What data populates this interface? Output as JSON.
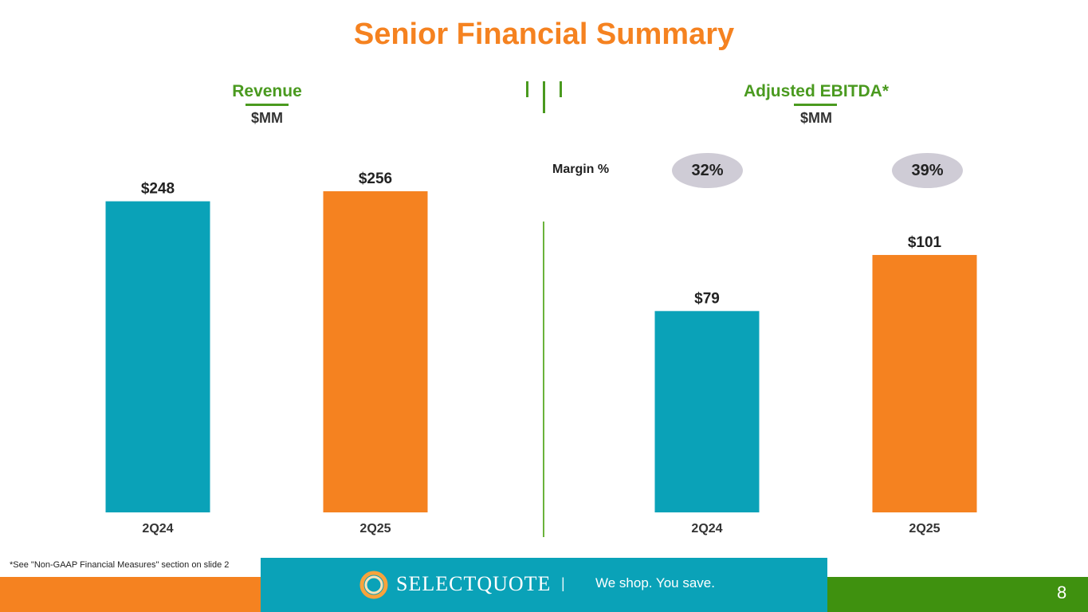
{
  "title": "Senior Financial Summary",
  "colors": {
    "title": "#f58220",
    "accent_green": "#4a9a1f",
    "teal": "#0aa2b8",
    "orange": "#f58220",
    "footer_green": "#3f910f",
    "pill": "#cfccd6"
  },
  "revenue_panel": {
    "title": "Revenue",
    "unit": "$MM"
  },
  "ebitda_panel": {
    "title": "Adjusted EBITDA*",
    "unit": "$MM",
    "margin_label": "Margin %",
    "margins": [
      "32%",
      "39%"
    ]
  },
  "chart_data": [
    {
      "type": "bar",
      "title": "Revenue",
      "ylabel": "$MM",
      "categories": [
        "2Q24",
        "2Q25"
      ],
      "values": [
        248,
        256
      ],
      "data_labels": [
        "$248",
        "$256"
      ],
      "bar_colors": [
        "#0aa2b8",
        "#f58220"
      ],
      "ylim": [
        0,
        256
      ],
      "grid": false
    },
    {
      "type": "bar",
      "title": "Adjusted EBITDA*",
      "ylabel": "$MM",
      "categories": [
        "2Q24",
        "2Q25"
      ],
      "values": [
        79,
        101
      ],
      "data_labels": [
        "$79",
        "$101"
      ],
      "bar_colors": [
        "#0aa2b8",
        "#f58220"
      ],
      "ylim": [
        0,
        126
      ],
      "grid": false
    }
  ],
  "footnote": "*See \"Non-GAAP Financial Measures\" section on slide 2",
  "footer": {
    "brand_name": "SELECTQUOTE",
    "divider": "|",
    "tagline": "We shop. You save.",
    "page_number": "8",
    "logo_icon": "selectquote-ring-logo"
  }
}
